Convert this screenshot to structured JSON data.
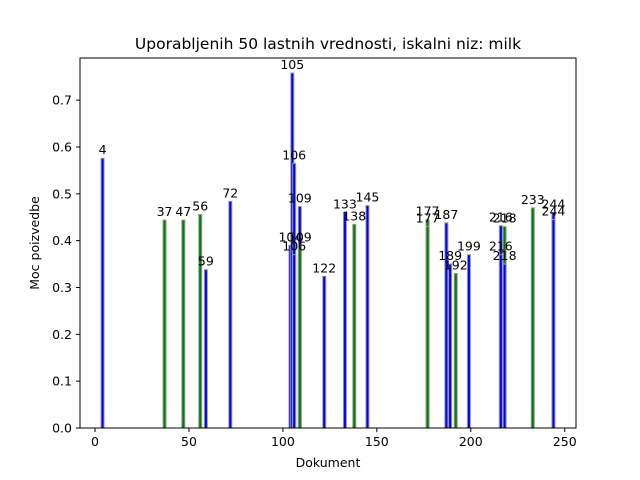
{
  "chart_data": {
    "type": "bar",
    "title": "Uporabljenih 50 lastnih vrednosti, iskalni niz: milk",
    "xlabel": "Dokument",
    "ylabel": "Moc poizvedbe",
    "xlim": [
      -8,
      256
    ],
    "ylim": [
      0,
      0.79
    ],
    "xticks": [
      0,
      50,
      100,
      150,
      200,
      250
    ],
    "yticks": [
      0.0,
      0.1,
      0.2,
      0.3,
      0.4,
      0.5,
      0.6,
      0.7
    ],
    "ytick_labels": [
      "0.0",
      "0.1",
      "0.2",
      "0.3",
      "0.4",
      "0.5",
      "0.6",
      "0.7"
    ],
    "bar_width": 1.6,
    "grid": false,
    "legend": "none",
    "colors": {
      "blue": "#0000ff",
      "green": "#008000",
      "edge": "#9a9a9a"
    },
    "bars": [
      {
        "x": 4,
        "y": 0.576,
        "color": "blue",
        "label": "4"
      },
      {
        "x": 37,
        "y": 0.444,
        "color": "green",
        "label": "37"
      },
      {
        "x": 47,
        "y": 0.444,
        "color": "green",
        "label": "47"
      },
      {
        "x": 56,
        "y": 0.456,
        "color": "green",
        "label": "56"
      },
      {
        "x": 59,
        "y": 0.338,
        "color": "blue",
        "label": "59"
      },
      {
        "x": 72,
        "y": 0.484,
        "color": "blue",
        "label": "72"
      },
      {
        "x": 104,
        "y": 0.39,
        "color": "blue",
        "label": "104"
      },
      {
        "x": 105,
        "y": 0.758,
        "color": "blue",
        "label": "105"
      },
      {
        "x": 106,
        "y": 0.565,
        "color": "blue",
        "label": "106"
      },
      {
        "x": 106,
        "y": 0.37,
        "color": "blue",
        "label": "106"
      },
      {
        "x": 109,
        "y": 0.473,
        "color": "blue",
        "label": "109"
      },
      {
        "x": 109,
        "y": 0.39,
        "color": "green",
        "label": "109"
      },
      {
        "x": 122,
        "y": 0.324,
        "color": "blue",
        "label": "122"
      },
      {
        "x": 133,
        "y": 0.46,
        "color": "blue",
        "label": "133"
      },
      {
        "x": 138,
        "y": 0.435,
        "color": "green",
        "label": "138"
      },
      {
        "x": 145,
        "y": 0.475,
        "color": "blue",
        "label": "145"
      },
      {
        "x": 177,
        "y": 0.445,
        "color": "green",
        "label": "177"
      },
      {
        "x": 177,
        "y": 0.43,
        "color": "green",
        "label": "177"
      },
      {
        "x": 187,
        "y": 0.438,
        "color": "blue",
        "label": "187"
      },
      {
        "x": 189,
        "y": 0.35,
        "color": "blue",
        "label": "189"
      },
      {
        "x": 192,
        "y": 0.33,
        "color": "green",
        "label": "192"
      },
      {
        "x": 199,
        "y": 0.37,
        "color": "blue",
        "label": "199"
      },
      {
        "x": 216,
        "y": 0.432,
        "color": "blue",
        "label": "216"
      },
      {
        "x": 216,
        "y": 0.37,
        "color": "blue",
        "label": "216"
      },
      {
        "x": 218,
        "y": 0.43,
        "color": "green",
        "label": "218"
      },
      {
        "x": 218,
        "y": 0.35,
        "color": "blue",
        "label": "218"
      },
      {
        "x": 233,
        "y": 0.47,
        "color": "green",
        "label": "233"
      },
      {
        "x": 244,
        "y": 0.46,
        "color": "blue",
        "label": "244"
      },
      {
        "x": 244,
        "y": 0.445,
        "color": "blue",
        "label": "244"
      }
    ]
  }
}
